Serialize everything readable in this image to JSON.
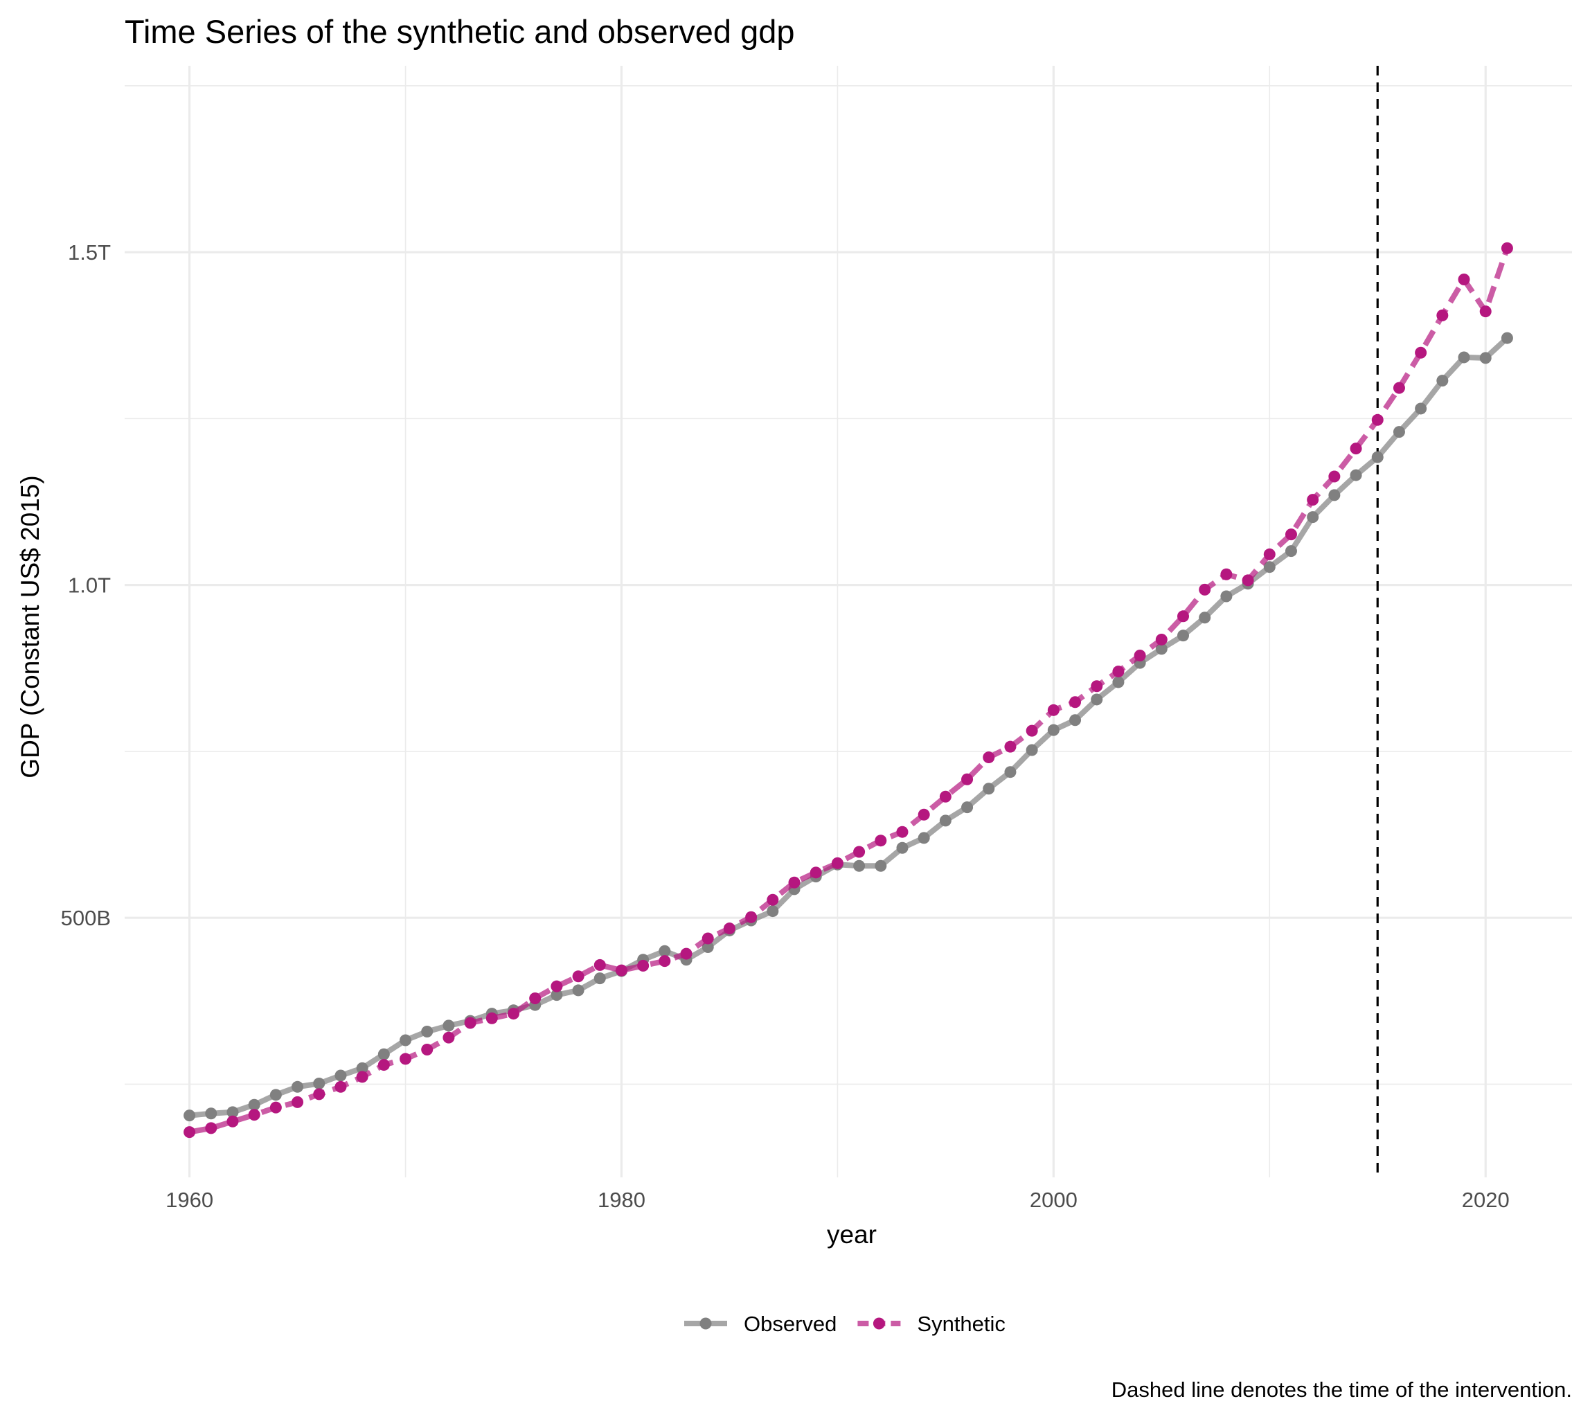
{
  "chart_data": {
    "type": "line",
    "title": "Time Series of the synthetic and observed gdp",
    "xlabel": "year",
    "ylabel": "GDP (Constant US$ 2015)",
    "caption": "Dashed line denotes the time of the intervention.",
    "x_ticks": [
      1960,
      1980,
      2000,
      2020
    ],
    "x_tick_labels": [
      "1960",
      "1980",
      "2000",
      "2020"
    ],
    "y_ticks": [
      500000000000,
      1000000000000,
      1500000000000
    ],
    "y_tick_labels": [
      "500B",
      "1.0T",
      "1.5T"
    ],
    "xlim": [
      1957,
      2024
    ],
    "ylim": [
      110000000000,
      1780000000000
    ],
    "intervention_year": 2015,
    "grid": true,
    "legend_position": "bottom",
    "x": [
      1960,
      1961,
      1962,
      1963,
      1964,
      1965,
      1966,
      1967,
      1968,
      1969,
      1970,
      1971,
      1972,
      1973,
      1974,
      1975,
      1976,
      1977,
      1978,
      1979,
      1980,
      1981,
      1982,
      1983,
      1984,
      1985,
      1986,
      1987,
      1988,
      1989,
      1990,
      1991,
      1992,
      1993,
      1994,
      1995,
      1996,
      1997,
      1998,
      1999,
      2000,
      2001,
      2002,
      2003,
      2004,
      2005,
      2006,
      2007,
      2008,
      2009,
      2010,
      2011,
      2012,
      2013,
      2014,
      2015,
      2016,
      2017,
      2018,
      2019,
      2020,
      2021
    ],
    "series": [
      {
        "name": "Observed",
        "color": "#808080",
        "line_style": "solid",
        "values": [
          203,
          206,
          208,
          219,
          234,
          246,
          251,
          263,
          274,
          295,
          316,
          329,
          338,
          345,
          356,
          361,
          369,
          384,
          391,
          409,
          420,
          437,
          450,
          437,
          456,
          481,
          496,
          510,
          543,
          562,
          580,
          578,
          578,
          605,
          620,
          646,
          666,
          694,
          719,
          752,
          782,
          797,
          828,
          854,
          883,
          904,
          924,
          951,
          983,
          1002,
          1027,
          1051,
          1102,
          1135,
          1165,
          1192,
          1230,
          1265,
          1307,
          1342,
          1341,
          1371
        ]
      },
      {
        "name": "Synthetic",
        "color": "#b5177f",
        "line_style": "dashed",
        "values": [
          178,
          184,
          194,
          204,
          215,
          223,
          235,
          246,
          261,
          279,
          288,
          302,
          320,
          342,
          349,
          356,
          379,
          397,
          412,
          429,
          421,
          428,
          435,
          446,
          469,
          484,
          501,
          527,
          553,
          568,
          582,
          599,
          616,
          629,
          655,
          682,
          708,
          741,
          757,
          781,
          812,
          824,
          848,
          870,
          894,
          918,
          953,
          993,
          1016,
          1007,
          1046,
          1076,
          1128,
          1163,
          1205,
          1248,
          1296,
          1349,
          1405,
          1459,
          1411,
          1506
        ]
      }
    ],
    "value_units": "billion constant 2015 US$"
  }
}
